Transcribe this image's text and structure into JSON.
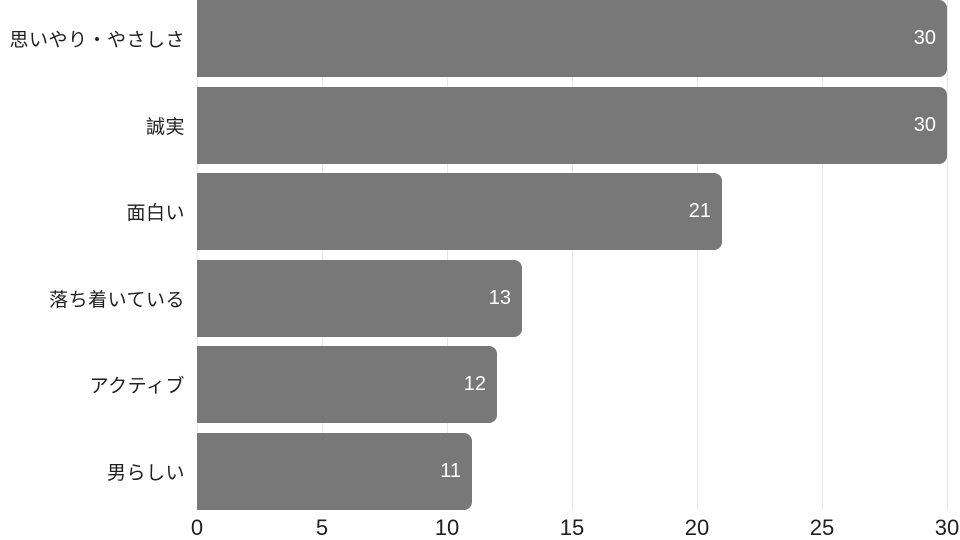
{
  "chart_data": {
    "type": "bar",
    "orientation": "horizontal",
    "title": "",
    "xlabel": "",
    "ylabel": "",
    "categories": [
      "思いやり・やさしさ",
      "誠実",
      "面白い",
      "落ち着いている",
      "アクティブ",
      "男らしい"
    ],
    "values": [
      30,
      30,
      21,
      13,
      12,
      11
    ],
    "value_labels": [
      "30",
      "30",
      "21",
      "13",
      "12",
      "11"
    ],
    "xlim": [
      0,
      30
    ],
    "x_ticks": [
      0,
      5,
      10,
      15,
      20,
      25,
      30
    ],
    "grid": "vertical-only",
    "legend": "none",
    "colors": {
      "bar": "#787878",
      "value_text": "#ffffff",
      "axis_text": "#1f1f1f",
      "grid_line": "#e8e8e8",
      "background": "#ffffff"
    }
  }
}
